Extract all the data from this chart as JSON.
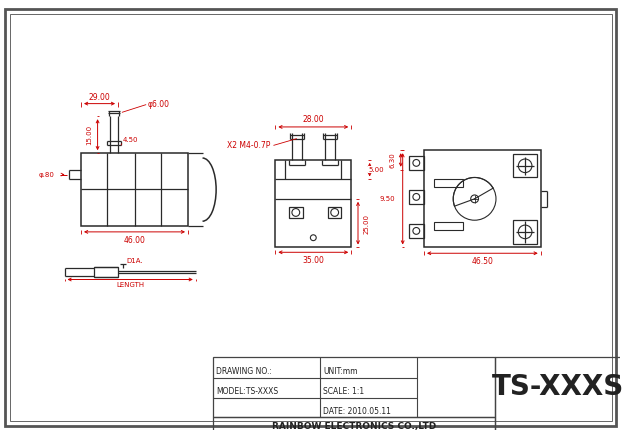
{
  "bg_color": "#ffffff",
  "border_color": "#444444",
  "dim_color": "#cc0000",
  "line_color": "#2a2a2a",
  "title": "TS-XXXS",
  "drawing_no": "DRAWING NO.:",
  "model": "MODEL:TS-XXXS",
  "unit": "UNIT:mm",
  "scale": "SCALE: 1:1",
  "date": "DATE: 2010.05.11",
  "company": "RAINBOW ELECTRONICS CO.,LTD",
  "dim_29": "29.00",
  "dim_46": "46.00",
  "dim_15": "15.00",
  "dim_phi6": "φ6.00",
  "dim_450": "4.50",
  "dim_phi80": "φ.80",
  "dim_D1A": "D1A.",
  "dim_LENGTH": "LENGTH",
  "dim_28": "28.00",
  "dim_35": "35.00",
  "dim_25": "25.00",
  "dim_X2M4": "X2 M4-0.7P",
  "dim_5": "5.00",
  "dim_630": "6.30",
  "dim_950": "9.50",
  "dim_4650": "46.50"
}
